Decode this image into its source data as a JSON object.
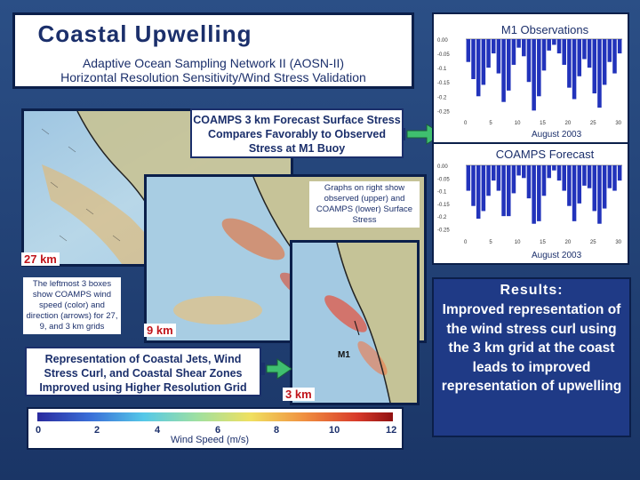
{
  "header": {
    "title": "Coastal Upwelling",
    "subtitle1": "Adaptive Ocean Sampling Network II (AOSN-II)",
    "subtitle2": "Horizontal Resolution Sensitivity/Wind Stress Validation"
  },
  "callouts": {
    "coamps_3km": "COAMPS 3 km Forecast Surface Stress Compares Favorably to Observed Stress at M1 Buoy",
    "graphs_note": "Graphs on right show observed (upper) and COAMPS (lower) Surface Stress",
    "leftmost_note": "The leftmost 3 boxes show COAMPS wind speed (color) and direction (arrows) for 27, 9, and 3 km grids",
    "representation": "Representation of Coastal Jets, Wind Stress Curl, and Coastal Shear Zones Improved using Higher Resolution Grid"
  },
  "grid_labels": {
    "km27": "27 km",
    "km9": "9 km",
    "km3": "3 km",
    "m1": "M1"
  },
  "colorbar": {
    "label": "Wind Speed (m/s)",
    "ticks": [
      "0",
      "2",
      "4",
      "6",
      "8",
      "10",
      "12"
    ]
  },
  "results": {
    "heading": "Results:",
    "body": "Improved representation of the wind stress curl using the 3 km grid at the coast leads to improved representation of upwelling"
  },
  "colors": {
    "background": "#1f3f73",
    "title_text": "#1b2f6b",
    "label_red": "#c0151b",
    "bar_blue": "#2233bb",
    "arrow_green": "#3fbf6f"
  },
  "chart_data": [
    {
      "type": "bar",
      "title": "M1 Observations",
      "xlabel": "August 2003",
      "x_ticks": [
        "0",
        "5",
        "10",
        "15",
        "20",
        "25",
        "30"
      ],
      "y_ticks": [
        "0.00",
        "-0.05",
        "-0.1",
        "-0.15",
        "-0.2",
        "-0.25"
      ],
      "ylim": [
        -0.28,
        0.0
      ],
      "values": [
        -0.08,
        -0.14,
        -0.2,
        -0.16,
        -0.1,
        -0.05,
        -0.12,
        -0.22,
        -0.18,
        -0.09,
        -0.03,
        -0.06,
        -0.15,
        -0.25,
        -0.2,
        -0.11,
        -0.04,
        -0.02,
        -0.05,
        -0.09,
        -0.17,
        -0.21,
        -0.13,
        -0.07,
        -0.1,
        -0.19,
        -0.24,
        -0.16,
        -0.08,
        -0.12,
        -0.05
      ]
    },
    {
      "type": "bar",
      "title": "COAMPS Forecast",
      "xlabel": "August 2003",
      "x_ticks": [
        "0",
        "5",
        "10",
        "15",
        "20",
        "25",
        "30"
      ],
      "y_ticks": [
        "0.00",
        "-0.05",
        "-0.1",
        "-0.15",
        "-0.2",
        "-0.25"
      ],
      "ylim": [
        -0.28,
        0.0
      ],
      "values": [
        -0.1,
        -0.16,
        -0.21,
        -0.18,
        -0.12,
        -0.06,
        -0.1,
        -0.2,
        -0.2,
        -0.11,
        -0.04,
        -0.05,
        -0.13,
        -0.23,
        -0.22,
        -0.12,
        -0.05,
        -0.02,
        -0.06,
        -0.1,
        -0.16,
        -0.22,
        -0.15,
        -0.08,
        -0.09,
        -0.18,
        -0.23,
        -0.17,
        -0.09,
        -0.1,
        -0.06
      ]
    }
  ]
}
